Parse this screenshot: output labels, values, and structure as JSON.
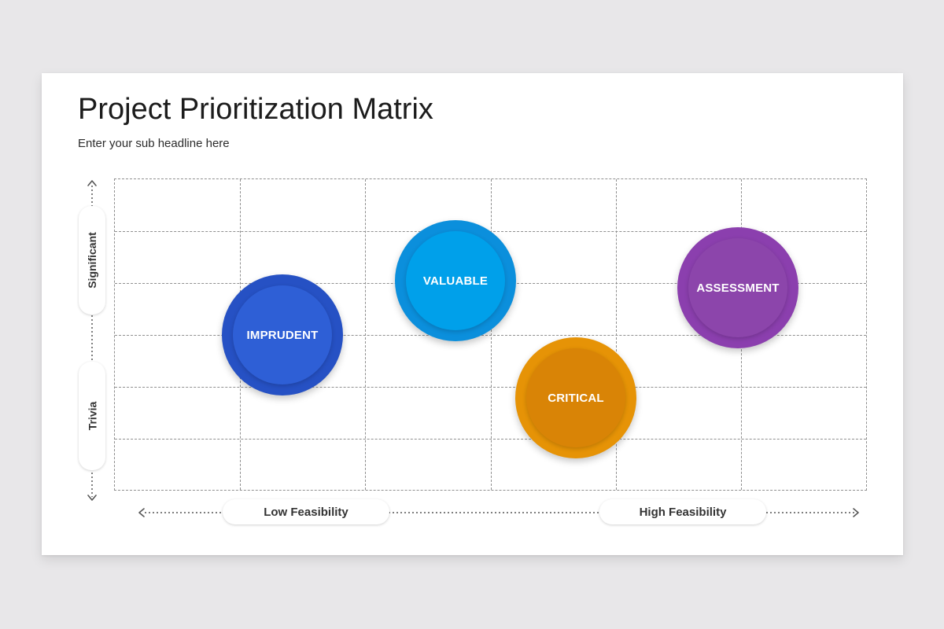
{
  "header": {
    "title": "Project Prioritization Matrix",
    "subtitle": "Enter your sub headline here"
  },
  "axes": {
    "x_low": "Low Feasibility",
    "x_high": "High Feasibility",
    "y_high": "Significant",
    "y_low": "Trivia"
  },
  "items": [
    {
      "label": "IMPRUDENT",
      "color_outer": "#2651c4",
      "color_inner": "#2e5fd6"
    },
    {
      "label": "VALUABLE",
      "color_outer": "#0b8fdc",
      "color_inner": "#00a0ea"
    },
    {
      "label": "CRITICAL",
      "color_outer": "#e69306",
      "color_inner": "#d98406"
    },
    {
      "label": "ASSESSMENT",
      "color_outer": "#8b3fae",
      "color_inner": "#8c45ab"
    }
  ]
}
